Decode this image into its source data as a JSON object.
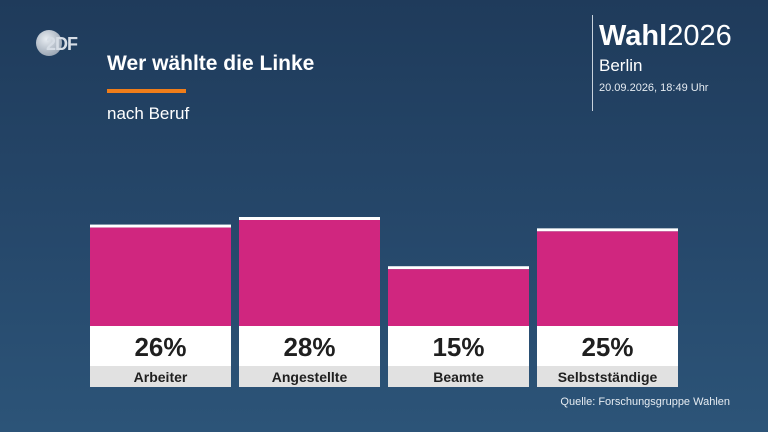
{
  "logo": {
    "text": "2DF"
  },
  "header": {
    "title": "Wer wählte die Linke",
    "subtitle": "nach Beruf"
  },
  "brand": {
    "title_bold": "Wahl",
    "title_year": "2026",
    "region": "Berlin",
    "timestamp": "20.09.2026, 18:49 Uhr"
  },
  "source": "Quelle: Forschungsgruppe Wahlen",
  "colors": {
    "bar": "#d0267f",
    "bar_top": "#ffffff",
    "value_box": "#ffffff",
    "label_box": "#e1e1e1",
    "accent": "#f07d19"
  },
  "chart_data": {
    "type": "bar",
    "title": "Wer wählte die Linke",
    "subtitle": "nach Beruf",
    "categories": [
      "Arbeiter",
      "Angestellte",
      "Beamte",
      "Selbstständige"
    ],
    "values": [
      26,
      28,
      15,
      25
    ],
    "value_labels": [
      "26%",
      "28%",
      "15%",
      "25%"
    ],
    "unit": "%",
    "ylim": [
      0,
      28
    ],
    "grid": false
  }
}
